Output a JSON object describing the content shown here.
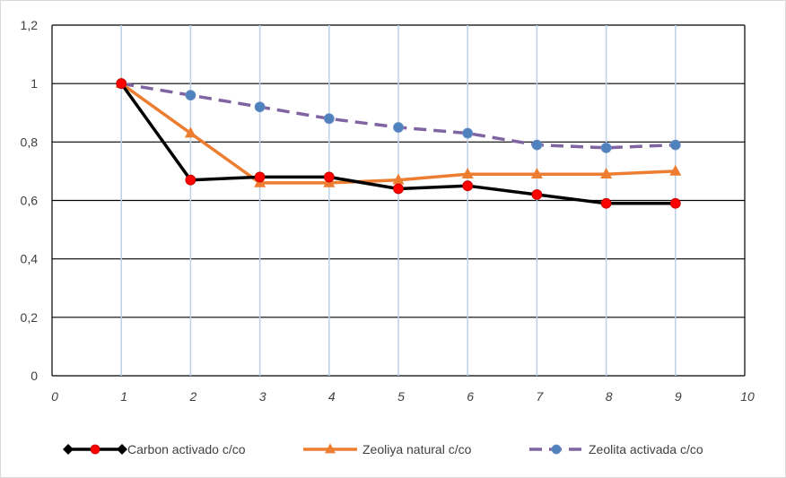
{
  "chart_data": {
    "type": "line",
    "title": "",
    "xlabel": "",
    "ylabel": "",
    "x": [
      1,
      2,
      3,
      4,
      5,
      6,
      7,
      8,
      9
    ],
    "xlim": [
      0,
      10
    ],
    "ylim": [
      0,
      1.2
    ],
    "x_ticks": [
      "0",
      "1",
      "2",
      "3",
      "4",
      "5",
      "6",
      "7",
      "8",
      "9",
      "10"
    ],
    "y_ticks": [
      "0",
      "0,2",
      "0,4",
      "0,6",
      "0,8",
      "1",
      "1,2"
    ],
    "grid": true,
    "legend_position": "bottom",
    "series": [
      {
        "name": "Carbon activado c/co",
        "values": [
          1.0,
          0.67,
          0.68,
          0.68,
          0.64,
          0.65,
          0.62,
          0.59,
          0.59
        ],
        "line_color": "#000000",
        "marker_color": "#ff0000",
        "line_style": "solid",
        "marker": "circle"
      },
      {
        "name": "Zeoliya natural c/co",
        "values": [
          1.0,
          0.83,
          0.66,
          0.66,
          0.67,
          0.69,
          0.69,
          0.69,
          0.7
        ],
        "line_color": "#ed7d31",
        "marker_color": "#ed7d31",
        "line_style": "solid",
        "marker": "triangle"
      },
      {
        "name": "Zeolita activada c/co",
        "values": [
          1.0,
          0.96,
          0.92,
          0.88,
          0.85,
          0.83,
          0.79,
          0.78,
          0.79
        ],
        "line_color": "#8064a2",
        "marker_color": "#4f81bd",
        "line_style": "dashed",
        "marker": "circle"
      }
    ]
  }
}
